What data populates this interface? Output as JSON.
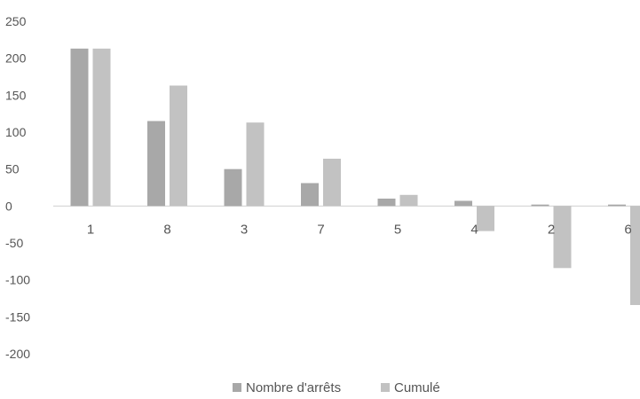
{
  "chart_data": {
    "type": "bar",
    "title": "",
    "xlabel": "",
    "ylabel": "",
    "ylim": [
      -200,
      250
    ],
    "yticks": [
      250,
      200,
      150,
      100,
      50,
      0,
      -50,
      -100,
      -150,
      -200
    ],
    "categories": [
      "1",
      "8",
      "3",
      "7",
      "5",
      "4",
      "2",
      "6"
    ],
    "series": [
      {
        "name": "Nombre d'arrêts",
        "color": "#a8a8a8",
        "values": [
          213,
          115,
          50,
          31,
          10,
          7,
          2,
          2
        ]
      },
      {
        "name": "Cumulé",
        "color": "#c2c2c2",
        "values": [
          213,
          163,
          113,
          64,
          15,
          -34,
          -84,
          -134
        ]
      }
    ],
    "legend_position": "bottom-center",
    "grid": false
  }
}
